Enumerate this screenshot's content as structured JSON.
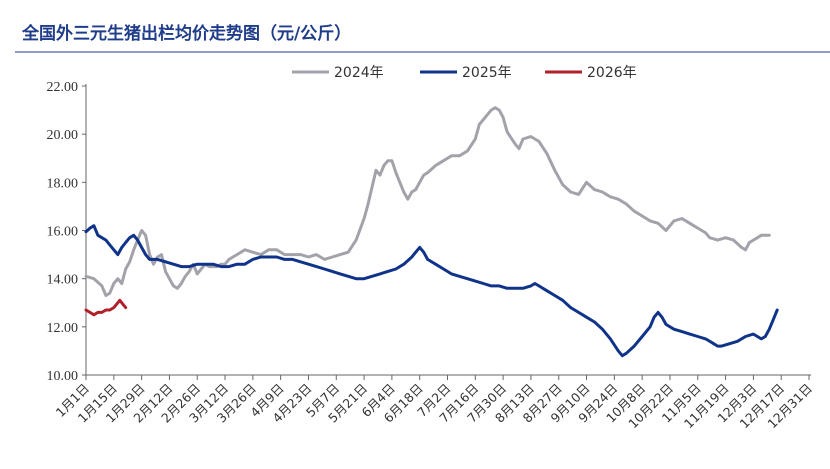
{
  "chart_data": {
    "type": "line",
    "title": "全国外三元生猪出栏均价走势图（元/公斤）",
    "xlabel": "",
    "ylabel": "",
    "ylim": [
      10,
      22
    ],
    "yticks": [
      "10.00",
      "12.00",
      "14.00",
      "16.00",
      "18.00",
      "20.00",
      "22.00"
    ],
    "x_range": [
      0,
      365
    ],
    "x_tick_labels": [
      "1月1日",
      "1月15日",
      "1月29日",
      "2月12日",
      "2月26日",
      "3月12日",
      "3月26日",
      "4月9日",
      "4月23日",
      "5月7日",
      "5月21日",
      "6月4日",
      "6月18日",
      "7月2日",
      "7月16日",
      "7月30日",
      "8月13日",
      "8月27日",
      "9月10日",
      "9月24日",
      "10月8日",
      "10月22日",
      "11月5日",
      "11月19日",
      "12月3日",
      "12月17日",
      "12月31日"
    ],
    "x_tick_days": [
      0,
      14,
      28,
      42,
      56,
      70,
      84,
      98,
      112,
      126,
      140,
      154,
      168,
      182,
      196,
      210,
      224,
      238,
      252,
      266,
      280,
      294,
      308,
      322,
      336,
      350,
      364
    ],
    "legend_position": "top",
    "series": [
      {
        "name": "2024年",
        "color": "#a3a2ab",
        "points": [
          [
            0,
            14.1
          ],
          [
            4,
            14.0
          ],
          [
            8,
            13.7
          ],
          [
            10,
            13.3
          ],
          [
            12,
            13.4
          ],
          [
            14,
            13.8
          ],
          [
            16,
            14.0
          ],
          [
            18,
            13.8
          ],
          [
            20,
            14.4
          ],
          [
            22,
            14.7
          ],
          [
            24,
            15.2
          ],
          [
            26,
            15.6
          ],
          [
            28,
            16.0
          ],
          [
            30,
            15.8
          ],
          [
            32,
            15.0
          ],
          [
            34,
            14.6
          ],
          [
            36,
            14.9
          ],
          [
            38,
            15.0
          ],
          [
            40,
            14.3
          ],
          [
            42,
            14.0
          ],
          [
            44,
            13.7
          ],
          [
            46,
            13.6
          ],
          [
            48,
            13.8
          ],
          [
            50,
            14.1
          ],
          [
            52,
            14.3
          ],
          [
            54,
            14.6
          ],
          [
            56,
            14.2
          ],
          [
            58,
            14.4
          ],
          [
            60,
            14.6
          ],
          [
            62,
            14.5
          ],
          [
            64,
            14.5
          ],
          [
            66,
            14.5
          ],
          [
            68,
            14.6
          ],
          [
            70,
            14.6
          ],
          [
            72,
            14.8
          ],
          [
            76,
            15.0
          ],
          [
            80,
            15.2
          ],
          [
            84,
            15.1
          ],
          [
            88,
            15.0
          ],
          [
            92,
            15.2
          ],
          [
            96,
            15.2
          ],
          [
            100,
            15.0
          ],
          [
            104,
            15.0
          ],
          [
            108,
            15.0
          ],
          [
            112,
            14.9
          ],
          [
            116,
            15.0
          ],
          [
            120,
            14.8
          ],
          [
            124,
            14.9
          ],
          [
            128,
            15.0
          ],
          [
            132,
            15.1
          ],
          [
            136,
            15.6
          ],
          [
            140,
            16.5
          ],
          [
            142,
            17.1
          ],
          [
            144,
            17.8
          ],
          [
            146,
            18.5
          ],
          [
            148,
            18.3
          ],
          [
            150,
            18.7
          ],
          [
            152,
            18.9
          ],
          [
            154,
            18.9
          ],
          [
            156,
            18.4
          ],
          [
            158,
            18.0
          ],
          [
            160,
            17.6
          ],
          [
            162,
            17.3
          ],
          [
            164,
            17.6
          ],
          [
            166,
            17.7
          ],
          [
            168,
            18.0
          ],
          [
            170,
            18.3
          ],
          [
            172,
            18.4
          ],
          [
            176,
            18.7
          ],
          [
            180,
            18.9
          ],
          [
            184,
            19.1
          ],
          [
            188,
            19.1
          ],
          [
            192,
            19.3
          ],
          [
            196,
            19.8
          ],
          [
            198,
            20.4
          ],
          [
            200,
            20.6
          ],
          [
            202,
            20.8
          ],
          [
            204,
            21.0
          ],
          [
            206,
            21.1
          ],
          [
            208,
            21.0
          ],
          [
            210,
            20.7
          ],
          [
            212,
            20.1
          ],
          [
            216,
            19.6
          ],
          [
            218,
            19.4
          ],
          [
            220,
            19.8
          ],
          [
            224,
            19.9
          ],
          [
            228,
            19.7
          ],
          [
            232,
            19.2
          ],
          [
            236,
            18.5
          ],
          [
            240,
            17.9
          ],
          [
            244,
            17.6
          ],
          [
            248,
            17.5
          ],
          [
            252,
            18.0
          ],
          [
            256,
            17.7
          ],
          [
            260,
            17.6
          ],
          [
            264,
            17.4
          ],
          [
            268,
            17.3
          ],
          [
            272,
            17.1
          ],
          [
            276,
            16.8
          ],
          [
            280,
            16.6
          ],
          [
            284,
            16.4
          ],
          [
            288,
            16.3
          ],
          [
            292,
            16.0
          ],
          [
            296,
            16.4
          ],
          [
            300,
            16.5
          ],
          [
            304,
            16.3
          ],
          [
            308,
            16.1
          ],
          [
            312,
            15.9
          ],
          [
            314,
            15.7
          ],
          [
            318,
            15.6
          ],
          [
            322,
            15.7
          ],
          [
            326,
            15.6
          ],
          [
            330,
            15.3
          ],
          [
            332,
            15.2
          ],
          [
            334,
            15.5
          ],
          [
            336,
            15.6
          ],
          [
            340,
            15.8
          ],
          [
            344,
            15.8
          ]
        ]
      },
      {
        "name": "2025年",
        "color": "#10338a",
        "points": [
          [
            0,
            15.95
          ],
          [
            2,
            16.1
          ],
          [
            4,
            16.2
          ],
          [
            6,
            15.8
          ],
          [
            8,
            15.7
          ],
          [
            10,
            15.6
          ],
          [
            12,
            15.4
          ],
          [
            14,
            15.2
          ],
          [
            16,
            15.0
          ],
          [
            18,
            15.3
          ],
          [
            20,
            15.5
          ],
          [
            22,
            15.7
          ],
          [
            24,
            15.8
          ],
          [
            26,
            15.6
          ],
          [
            28,
            15.3
          ],
          [
            30,
            15.0
          ],
          [
            32,
            14.8
          ],
          [
            36,
            14.8
          ],
          [
            40,
            14.7
          ],
          [
            44,
            14.6
          ],
          [
            48,
            14.5
          ],
          [
            52,
            14.5
          ],
          [
            56,
            14.6
          ],
          [
            60,
            14.6
          ],
          [
            64,
            14.6
          ],
          [
            68,
            14.5
          ],
          [
            72,
            14.5
          ],
          [
            76,
            14.6
          ],
          [
            80,
            14.6
          ],
          [
            84,
            14.8
          ],
          [
            88,
            14.9
          ],
          [
            92,
            14.9
          ],
          [
            96,
            14.9
          ],
          [
            100,
            14.8
          ],
          [
            104,
            14.8
          ],
          [
            108,
            14.7
          ],
          [
            112,
            14.6
          ],
          [
            116,
            14.5
          ],
          [
            120,
            14.4
          ],
          [
            124,
            14.3
          ],
          [
            128,
            14.2
          ],
          [
            132,
            14.1
          ],
          [
            136,
            14.0
          ],
          [
            140,
            14.0
          ],
          [
            144,
            14.1
          ],
          [
            148,
            14.2
          ],
          [
            152,
            14.3
          ],
          [
            156,
            14.4
          ],
          [
            160,
            14.6
          ],
          [
            164,
            14.9
          ],
          [
            166,
            15.1
          ],
          [
            168,
            15.3
          ],
          [
            170,
            15.1
          ],
          [
            172,
            14.8
          ],
          [
            176,
            14.6
          ],
          [
            180,
            14.4
          ],
          [
            184,
            14.2
          ],
          [
            188,
            14.1
          ],
          [
            192,
            14.0
          ],
          [
            196,
            13.9
          ],
          [
            200,
            13.8
          ],
          [
            204,
            13.7
          ],
          [
            208,
            13.7
          ],
          [
            212,
            13.6
          ],
          [
            216,
            13.6
          ],
          [
            220,
            13.6
          ],
          [
            224,
            13.7
          ],
          [
            226,
            13.8
          ],
          [
            228,
            13.7
          ],
          [
            232,
            13.5
          ],
          [
            236,
            13.3
          ],
          [
            240,
            13.1
          ],
          [
            244,
            12.8
          ],
          [
            248,
            12.6
          ],
          [
            252,
            12.4
          ],
          [
            256,
            12.2
          ],
          [
            260,
            11.9
          ],
          [
            264,
            11.5
          ],
          [
            268,
            11.0
          ],
          [
            270,
            10.8
          ],
          [
            272,
            10.9
          ],
          [
            276,
            11.2
          ],
          [
            280,
            11.6
          ],
          [
            284,
            12.0
          ],
          [
            286,
            12.4
          ],
          [
            288,
            12.6
          ],
          [
            290,
            12.4
          ],
          [
            292,
            12.1
          ],
          [
            296,
            11.9
          ],
          [
            300,
            11.8
          ],
          [
            304,
            11.7
          ],
          [
            308,
            11.6
          ],
          [
            312,
            11.5
          ],
          [
            316,
            11.3
          ],
          [
            318,
            11.2
          ],
          [
            320,
            11.2
          ],
          [
            324,
            11.3
          ],
          [
            328,
            11.4
          ],
          [
            332,
            11.6
          ],
          [
            336,
            11.7
          ],
          [
            338,
            11.6
          ],
          [
            340,
            11.5
          ],
          [
            342,
            11.6
          ],
          [
            344,
            11.9
          ],
          [
            346,
            12.3
          ],
          [
            348,
            12.7
          ]
        ]
      },
      {
        "name": "2026年",
        "color": "#b0202a",
        "points": [
          [
            0,
            12.7
          ],
          [
            2,
            12.6
          ],
          [
            4,
            12.5
          ],
          [
            6,
            12.6
          ],
          [
            8,
            12.6
          ],
          [
            10,
            12.7
          ],
          [
            12,
            12.7
          ],
          [
            14,
            12.8
          ],
          [
            15,
            12.9
          ],
          [
            16,
            13.0
          ],
          [
            17,
            13.1
          ],
          [
            18,
            13.0
          ],
          [
            19,
            12.9
          ],
          [
            20,
            12.8
          ]
        ]
      }
    ]
  }
}
